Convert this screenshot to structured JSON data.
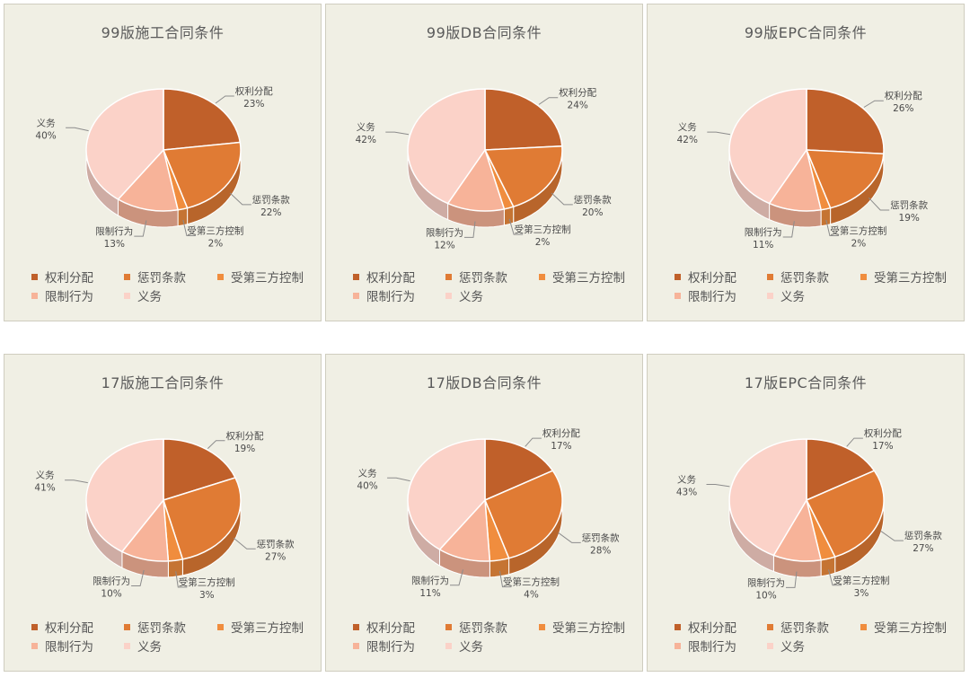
{
  "colors": {
    "权利分配": "#c0602a",
    "惩罚条款": "#e07b34",
    "受第三方控制": "#f08d3e",
    "限制行为": "#f7b399",
    "义务": "#fbd2c8"
  },
  "chart_data": [
    {
      "type": "pie",
      "title": "99版施工合同条件",
      "legend_position": "bottom",
      "categories": [
        "权利分配",
        "惩罚条款",
        "受第三方控制",
        "限制行为",
        "义务"
      ],
      "values": [
        23,
        22,
        2,
        13,
        40
      ],
      "labels": [
        "23%",
        "22%",
        "2%",
        "13%",
        "40%"
      ]
    },
    {
      "type": "pie",
      "title": "99版DB合同条件",
      "legend_position": "bottom",
      "categories": [
        "权利分配",
        "惩罚条款",
        "受第三方控制",
        "限制行为",
        "义务"
      ],
      "values": [
        24,
        20,
        2,
        12,
        42
      ],
      "labels": [
        "24%",
        "20%",
        "2%",
        "12%",
        "42%"
      ]
    },
    {
      "type": "pie",
      "title": "99版EPC合同条件",
      "legend_position": "bottom",
      "categories": [
        "权利分配",
        "惩罚条款",
        "受第三方控制",
        "限制行为",
        "义务"
      ],
      "values": [
        26,
        19,
        2,
        11,
        42
      ],
      "labels": [
        "26%",
        "19%",
        "2%",
        "11%",
        "42%"
      ]
    },
    {
      "type": "pie",
      "title": "17版施工合同条件",
      "legend_position": "bottom",
      "categories": [
        "权利分配",
        "惩罚条款",
        "受第三方控制",
        "限制行为",
        "义务"
      ],
      "values": [
        19,
        27,
        3,
        10,
        41
      ],
      "labels": [
        "19%",
        "27%",
        "3%",
        "10%",
        "41%"
      ]
    },
    {
      "type": "pie",
      "title": "17版DB合同条件",
      "legend_position": "bottom",
      "categories": [
        "权利分配",
        "惩罚条款",
        "受第三方控制",
        "限制行为",
        "义务"
      ],
      "values": [
        17,
        28,
        4,
        11,
        40
      ],
      "labels": [
        "17%",
        "28%",
        "4%",
        "11%",
        "40%"
      ]
    },
    {
      "type": "pie",
      "title": "17版EPC合同条件",
      "legend_position": "bottom",
      "categories": [
        "权利分配",
        "惩罚条款",
        "受第三方控制",
        "限制行为",
        "义务"
      ],
      "values": [
        17,
        27,
        3,
        10,
        43
      ],
      "labels": [
        "17%",
        "27%",
        "3%",
        "10%",
        "43%"
      ]
    }
  ]
}
